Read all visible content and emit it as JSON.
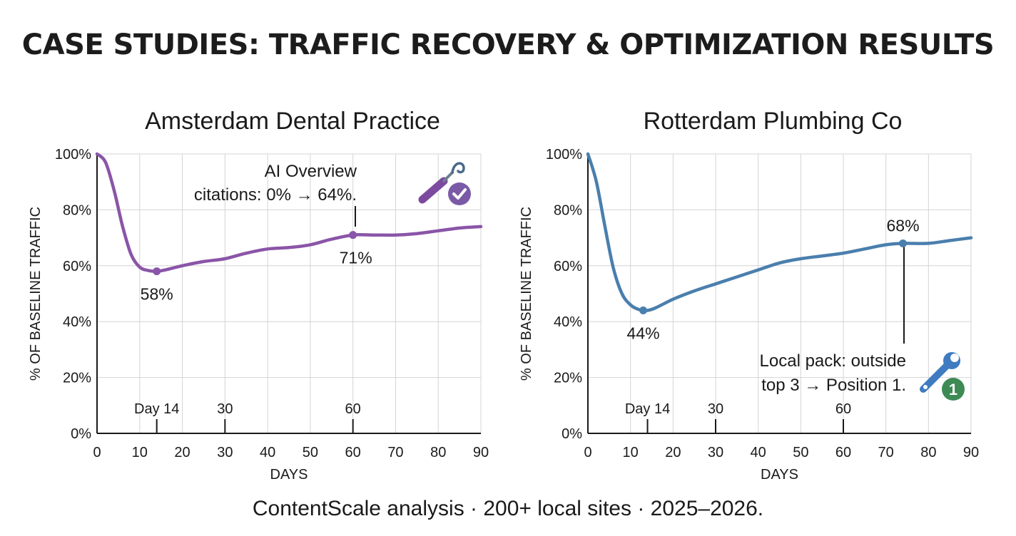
{
  "title": "CASE STUDIES: TRAFFIC RECOVERY & OPTIMIZATION RESULTS",
  "footer": "ContentScale analysis · 200+ local sites · 2025–2026.",
  "chart_data": [
    {
      "type": "line",
      "title": "Amsterdam Dental Practice",
      "xlabel": "DAYS",
      "ylabel": "% OF BASELINE TRAFFIC",
      "xlim": [
        0,
        90
      ],
      "ylim": [
        0,
        100
      ],
      "xticks": [
        0,
        10,
        20,
        30,
        40,
        50,
        60,
        70,
        80,
        90
      ],
      "yticks": [
        0,
        20,
        40,
        60,
        80,
        100
      ],
      "ytick_labels": [
        "0%",
        "20%",
        "40%",
        "60%",
        "80%",
        "100%"
      ],
      "grid": true,
      "color": "#8a55a8",
      "series": [
        {
          "x": [
            0,
            2,
            4,
            6,
            8,
            10,
            12,
            14,
            16,
            20,
            25,
            30,
            35,
            40,
            45,
            50,
            55,
            60,
            65,
            70,
            75,
            80,
            85,
            90
          ],
          "y": [
            100,
            97,
            87,
            74,
            64,
            59.5,
            58.3,
            58,
            58.5,
            60,
            61.5,
            62.5,
            64.5,
            66,
            66.5,
            67.5,
            69.5,
            71,
            71,
            71,
            71.5,
            72.5,
            73.5,
            74
          ]
        }
      ],
      "points": [
        {
          "x": 14,
          "y": 58,
          "label": "58%"
        },
        {
          "x": 60,
          "y": 71,
          "label": "71%"
        }
      ],
      "markers": [
        {
          "x": 14,
          "label": "Day 14"
        },
        {
          "x": 30,
          "label": "30"
        },
        {
          "x": 60,
          "label": "60"
        }
      ],
      "annotation": [
        "AI Overview",
        "citations: 0% → 64%."
      ],
      "icon": "tooth-tool-check-icon"
    },
    {
      "type": "line",
      "title": "Rotterdam Plumbing Co",
      "xlabel": "DAYS",
      "ylabel": "% OF BASELINE TRAFFIC",
      "xlim": [
        0,
        90
      ],
      "ylim": [
        0,
        100
      ],
      "xticks": [
        0,
        10,
        20,
        30,
        40,
        50,
        60,
        70,
        80,
        90
      ],
      "yticks": [
        0,
        20,
        40,
        60,
        80,
        100
      ],
      "ytick_labels": [
        "0%",
        "20%",
        "40%",
        "60%",
        "80%",
        "100%"
      ],
      "grid": true,
      "color": "#4a7fad",
      "series": [
        {
          "x": [
            0,
            2,
            4,
            6,
            8,
            10,
            12,
            14,
            16,
            20,
            25,
            30,
            35,
            40,
            45,
            50,
            55,
            60,
            65,
            70,
            74,
            80,
            85,
            90
          ],
          "y": [
            100,
            90,
            74,
            59,
            50,
            46,
            44.3,
            44,
            45,
            48,
            51,
            53.5,
            56,
            58.5,
            61,
            62.5,
            63.5,
            64.5,
            66,
            67.5,
            68,
            68,
            69,
            70
          ]
        }
      ],
      "points": [
        {
          "x": 13,
          "y": 44,
          "label": "44%"
        },
        {
          "x": 74,
          "y": 68,
          "label": "68%"
        }
      ],
      "markers": [
        {
          "x": 14,
          "label": "Day 14"
        },
        {
          "x": 30,
          "label": "30"
        },
        {
          "x": 60,
          "label": "60"
        }
      ],
      "annotation": [
        "Local pack: outside",
        "top 3 → Position 1."
      ],
      "icon": "wrench-position-one-icon",
      "badge": "1"
    }
  ]
}
